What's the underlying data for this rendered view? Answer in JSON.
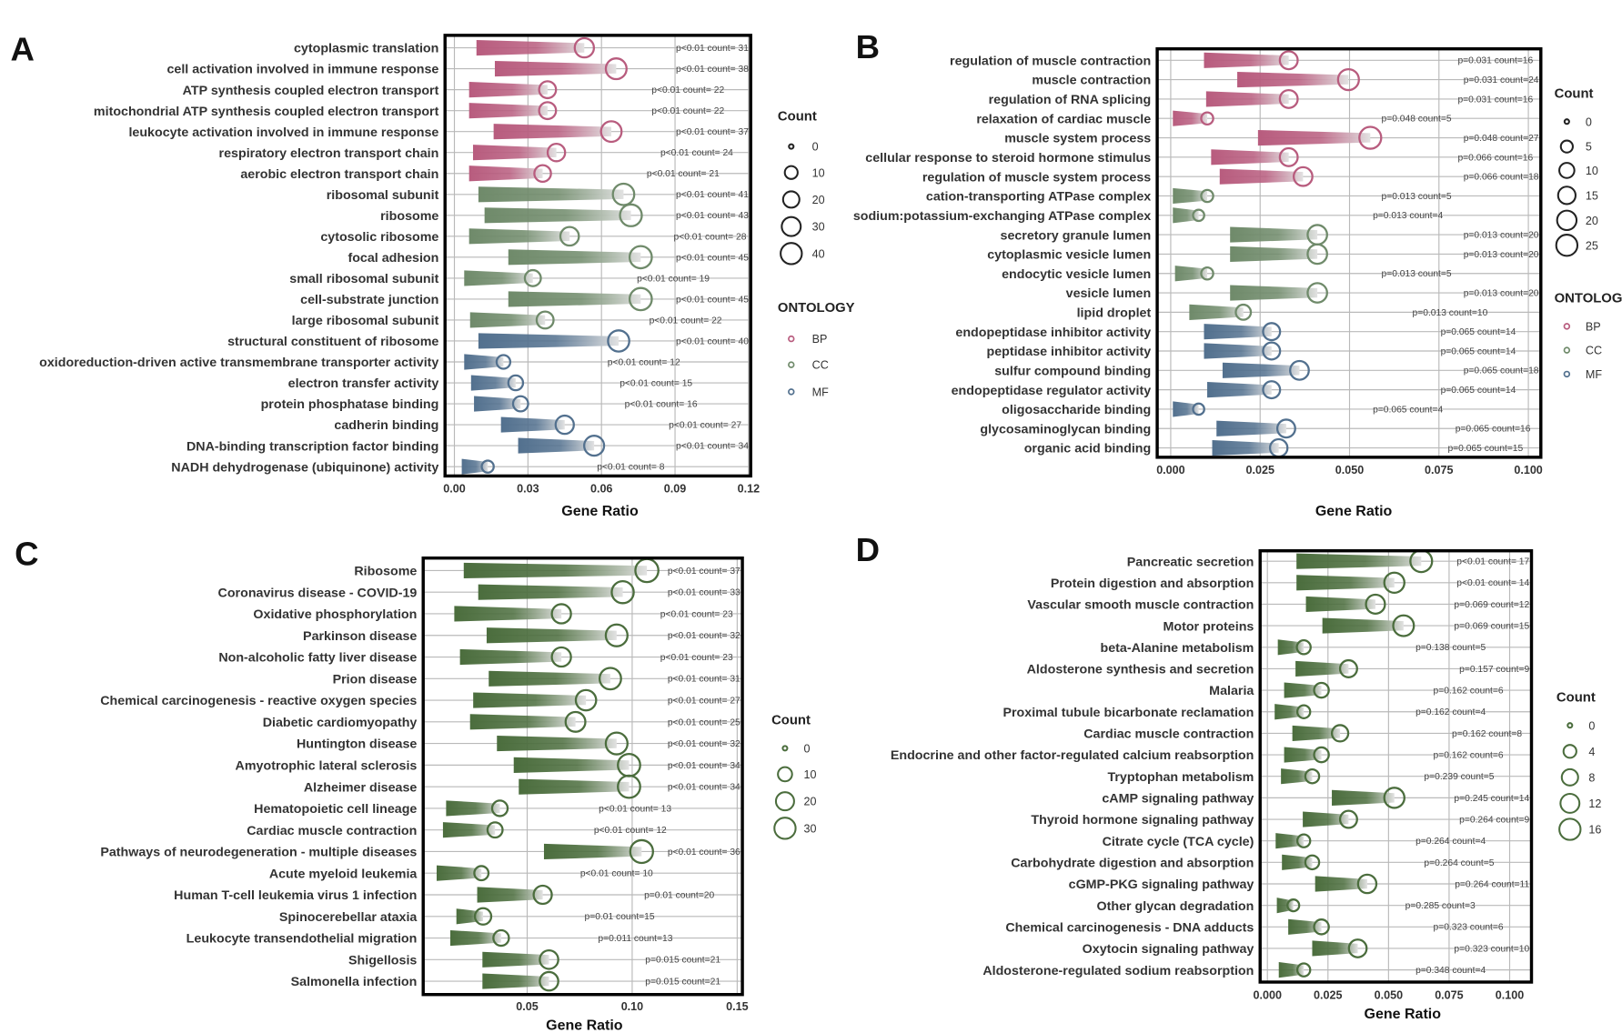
{
  "colors": {
    "BP": "#b85c7e",
    "CC": "#6f8a6a",
    "MF": "#52708e",
    "KEGG": "#4b6d3d",
    "fade": "#e2e2e2"
  },
  "chart_data": [
    {
      "panel": "A",
      "type": "bar",
      "xlabel": "Gene Ratio",
      "xlim": [
        0,
        0.12
      ],
      "ticks": [
        0,
        0.03,
        0.06,
        0.09,
        0.12
      ],
      "tick_labels": [
        "0.00",
        "0.03",
        "0.06",
        "0.09",
        "0.12"
      ],
      "legend_count_title": "Count",
      "legend_counts": [
        0,
        10,
        20,
        30,
        40
      ],
      "legend_group_title": "ONTOLOGY",
      "legend_groups": [
        "BP",
        "CC",
        "MF"
      ],
      "rows": [
        {
          "term": "cytoplasmic translation",
          "group": "BP",
          "start": 0.009,
          "ratio": 0.053,
          "count": 31,
          "label": "p<0.01 count= 31"
        },
        {
          "term": "cell activation involved in immune response",
          "group": "BP",
          "start": 0.0165,
          "ratio": 0.066,
          "count": 38,
          "label": "p<0.01 count= 38"
        },
        {
          "term": "ATP synthesis coupled electron transport",
          "group": "BP",
          "start": 0.006,
          "ratio": 0.038,
          "count": 22,
          "label": "p<0.01 count= 22"
        },
        {
          "term": "mitochondrial ATP synthesis coupled electron transport",
          "group": "BP",
          "start": 0.006,
          "ratio": 0.038,
          "count": 22,
          "label": "p<0.01 count= 22"
        },
        {
          "term": "leukocyte activation involved in immune response",
          "group": "BP",
          "start": 0.016,
          "ratio": 0.064,
          "count": 37,
          "label": "p<0.01 count= 37"
        },
        {
          "term": "respiratory electron transport chain",
          "group": "BP",
          "start": 0.0076,
          "ratio": 0.0416,
          "count": 24,
          "label": "p<0.01 count= 24"
        },
        {
          "term": "aerobic electron transport chain",
          "group": "BP",
          "start": 0.006,
          "ratio": 0.036,
          "count": 21,
          "label": "p<0.01 count= 21"
        },
        {
          "term": "ribosomal subunit",
          "group": "CC",
          "start": 0.0098,
          "ratio": 0.069,
          "count": 41,
          "label": "p<0.01 count= 41"
        },
        {
          "term": "ribosome",
          "group": "CC",
          "start": 0.0123,
          "ratio": 0.072,
          "count": 43,
          "label": "p<0.01 count= 43"
        },
        {
          "term": "cytosolic ribosome",
          "group": "CC",
          "start": 0.006,
          "ratio": 0.047,
          "count": 28,
          "label": "p<0.01 count= 28"
        },
        {
          "term": "focal adhesion",
          "group": "CC",
          "start": 0.022,
          "ratio": 0.076,
          "count": 45,
          "label": "p<0.01 count= 45"
        },
        {
          "term": "small ribosomal subunit",
          "group": "CC",
          "start": 0.004,
          "ratio": 0.032,
          "count": 19,
          "label": "p<0.01 count= 19"
        },
        {
          "term": "cell-substrate junction",
          "group": "CC",
          "start": 0.022,
          "ratio": 0.076,
          "count": 45,
          "label": "p<0.01 count= 45"
        },
        {
          "term": "large ribosomal subunit",
          "group": "CC",
          "start": 0.0064,
          "ratio": 0.037,
          "count": 22,
          "label": "p<0.01 count= 22"
        },
        {
          "term": "structural constituent of ribosome",
          "group": "MF",
          "start": 0.0098,
          "ratio": 0.067,
          "count": 40,
          "label": "p<0.01 count= 40"
        },
        {
          "term": "oxidoreduction-driven active transmembrane transporter activity",
          "group": "MF",
          "start": 0.004,
          "ratio": 0.02,
          "count": 12,
          "label": "p<0.01 count= 12"
        },
        {
          "term": "electron transfer activity",
          "group": "MF",
          "start": 0.0068,
          "ratio": 0.025,
          "count": 15,
          "label": "p<0.01 count= 15"
        },
        {
          "term": "protein phosphatase binding",
          "group": "MF",
          "start": 0.008,
          "ratio": 0.027,
          "count": 16,
          "label": "p<0.01 count= 16"
        },
        {
          "term": "cadherin binding",
          "group": "MF",
          "start": 0.019,
          "ratio": 0.045,
          "count": 27,
          "label": "p<0.01 count= 27"
        },
        {
          "term": "DNA-binding transcription factor binding",
          "group": "MF",
          "start": 0.026,
          "ratio": 0.057,
          "count": 34,
          "label": "p<0.01 count= 34"
        },
        {
          "term": "NADH dehydrogenase (ubiquinone) activity",
          "group": "MF",
          "start": 0.003,
          "ratio": 0.0136,
          "count": 8,
          "label": "p<0.01 count= 8"
        }
      ]
    },
    {
      "panel": "B",
      "type": "bar",
      "xlabel": "Gene Ratio",
      "xlim": [
        0,
        0.1
      ],
      "ticks": [
        0,
        0.025,
        0.05,
        0.075,
        0.1
      ],
      "tick_labels": [
        "0.000",
        "0.025",
        "0.050",
        "0.075",
        "0.100"
      ],
      "legend_count_title": "Count",
      "legend_counts": [
        0,
        5,
        10,
        15,
        20,
        25
      ],
      "legend_group_title": "ONTOLOG",
      "legend_groups": [
        "BP",
        "CC",
        "MF"
      ],
      "rows": [
        {
          "term": "regulation of muscle contraction",
          "group": "BP",
          "start": 0.0093,
          "ratio": 0.033,
          "count": 16,
          "label": "p=0.031 count=16"
        },
        {
          "term": "muscle contraction",
          "group": "BP",
          "start": 0.0186,
          "ratio": 0.0497,
          "count": 24,
          "label": "p=0.031 count=24"
        },
        {
          "term": "regulation of RNA splicing",
          "group": "BP",
          "start": 0.0099,
          "ratio": 0.033,
          "count": 16,
          "label": "p=0.031 count=16"
        },
        {
          "term": "relaxation of cardiac muscle",
          "group": "BP",
          "start": 0.0006,
          "ratio": 0.0102,
          "count": 5,
          "label": "p=0.048 count=5"
        },
        {
          "term": "muscle system process",
          "group": "BP",
          "start": 0.0244,
          "ratio": 0.0558,
          "count": 27,
          "label": "p=0.048 count=27"
        },
        {
          "term": "cellular response to steroid hormone stimulus",
          "group": "BP",
          "start": 0.0113,
          "ratio": 0.033,
          "count": 16,
          "label": "p=0.066 count=16"
        },
        {
          "term": "regulation of muscle system process",
          "group": "BP",
          "start": 0.0137,
          "ratio": 0.037,
          "count": 18,
          "label": "p=0.066 count=18"
        },
        {
          "term": "cation-transporting ATPase complex",
          "group": "CC",
          "start": 0.0006,
          "ratio": 0.0102,
          "count": 5,
          "label": "p=0.013 count=5"
        },
        {
          "term": "sodium:potassium-exchanging ATPase complex",
          "group": "CC",
          "start": 0.0006,
          "ratio": 0.0078,
          "count": 4,
          "label": "p=0.013 count=4"
        },
        {
          "term": "secretory granule lumen",
          "group": "CC",
          "start": 0.0166,
          "ratio": 0.041,
          "count": 20,
          "label": "p=0.013 count=20"
        },
        {
          "term": "cytoplasmic vesicle lumen",
          "group": "CC",
          "start": 0.0166,
          "ratio": 0.041,
          "count": 20,
          "label": "p=0.013 count=20"
        },
        {
          "term": "endocytic vesicle lumen",
          "group": "CC",
          "start": 0.0012,
          "ratio": 0.0102,
          "count": 5,
          "label": "p=0.013 count=5"
        },
        {
          "term": "vesicle lumen",
          "group": "CC",
          "start": 0.0166,
          "ratio": 0.041,
          "count": 20,
          "label": "p=0.013 count=20"
        },
        {
          "term": "lipid droplet",
          "group": "CC",
          "start": 0.0052,
          "ratio": 0.0203,
          "count": 10,
          "label": "p=0.013 count=10"
        },
        {
          "term": "endopeptidase inhibitor activity",
          "group": "MF",
          "start": 0.0093,
          "ratio": 0.0282,
          "count": 14,
          "label": "p=0.065 count=14"
        },
        {
          "term": "peptidase inhibitor activity",
          "group": "MF",
          "start": 0.0093,
          "ratio": 0.0282,
          "count": 14,
          "label": "p=0.065 count=14"
        },
        {
          "term": "sulfur compound binding",
          "group": "MF",
          "start": 0.0145,
          "ratio": 0.036,
          "count": 18,
          "label": "p=0.065 count=18"
        },
        {
          "term": "endopeptidase regulator activity",
          "group": "MF",
          "start": 0.0102,
          "ratio": 0.0282,
          "count": 14,
          "label": "p=0.065 count=14"
        },
        {
          "term": "oligosaccharide binding",
          "group": "MF",
          "start": 0.0006,
          "ratio": 0.0078,
          "count": 4,
          "label": "p=0.065 count=4"
        },
        {
          "term": "glycosaminoglycan binding",
          "group": "MF",
          "start": 0.0128,
          "ratio": 0.0323,
          "count": 16,
          "label": "p=0.065 count=16"
        },
        {
          "term": "organic acid binding",
          "group": "MF",
          "start": 0.0116,
          "ratio": 0.0302,
          "count": 15,
          "label": "p=0.065 count=15"
        }
      ]
    },
    {
      "panel": "C",
      "type": "bar",
      "xlabel": "Gene Ratio",
      "xlim": [
        0,
        0.15
      ],
      "ticks": [
        0.05,
        0.1,
        0.15
      ],
      "tick_labels": [
        "0.05",
        "0.10",
        "0.15"
      ],
      "legend_count_title": "Count",
      "legend_counts": [
        0,
        10,
        20,
        30
      ],
      "rows": [
        {
          "term": "Ribosome",
          "group": "KEGG",
          "start": 0.0198,
          "ratio": 0.107,
          "count": 37,
          "label": "p<0.01 count= 37"
        },
        {
          "term": "Coronavirus disease - COVID-19",
          "group": "KEGG",
          "start": 0.0267,
          "ratio": 0.0955,
          "count": 33,
          "label": "p<0.01 count= 33"
        },
        {
          "term": "Oxidative phosphorylation",
          "group": "KEGG",
          "start": 0.0153,
          "ratio": 0.0663,
          "count": 23,
          "label": "p<0.01 count= 23"
        },
        {
          "term": "Parkinson disease",
          "group": "KEGG",
          "start": 0.0307,
          "ratio": 0.0926,
          "count": 32,
          "label": "p<0.01 count= 32"
        },
        {
          "term": "Non-alcoholic fatty liver disease",
          "group": "KEGG",
          "start": 0.018,
          "ratio": 0.0663,
          "count": 23,
          "label": "p<0.01 count= 23"
        },
        {
          "term": "Prion disease",
          "group": "KEGG",
          "start": 0.0317,
          "ratio": 0.0896,
          "count": 31,
          "label": "p<0.01 count= 31"
        },
        {
          "term": "Chemical carcinogenesis - reactive oxygen species",
          "group": "KEGG",
          "start": 0.0243,
          "ratio": 0.078,
          "count": 27,
          "label": "p<0.01 count= 27"
        },
        {
          "term": "Diabetic cardiomyopathy",
          "group": "KEGG",
          "start": 0.0228,
          "ratio": 0.073,
          "count": 25,
          "label": "p<0.01 count= 25"
        },
        {
          "term": "Huntington disease",
          "group": "KEGG",
          "start": 0.0356,
          "ratio": 0.0926,
          "count": 32,
          "label": "p<0.01 count= 32"
        },
        {
          "term": "Amyotrophic lateral sclerosis",
          "group": "KEGG",
          "start": 0.0436,
          "ratio": 0.0985,
          "count": 34,
          "label": "p<0.01 count= 34"
        },
        {
          "term": "Alzheimer disease",
          "group": "KEGG",
          "start": 0.046,
          "ratio": 0.0985,
          "count": 34,
          "label": "p<0.01 count= 34"
        },
        {
          "term": "Hematopoietic cell lineage",
          "group": "KEGG",
          "start": 0.0114,
          "ratio": 0.037,
          "count": 13,
          "label": "p<0.01 count= 13"
        },
        {
          "term": "Cardiac muscle contraction",
          "group": "KEGG",
          "start": 0.0099,
          "ratio": 0.0347,
          "count": 12,
          "label": "p<0.01 count= 12"
        },
        {
          "term": "Pathways of neurodegeneration - multiple diseases",
          "group": "KEGG",
          "start": 0.058,
          "ratio": 0.1045,
          "count": 36,
          "label": "p<0.01 count= 36"
        },
        {
          "term": "Acute myeloid leukemia",
          "group": "KEGG",
          "start": 0.0069,
          "ratio": 0.0282,
          "count": 10,
          "label": "p<0.01 count= 10"
        },
        {
          "term": "Human T-cell leukemia virus 1 infection",
          "group": "KEGG",
          "start": 0.0262,
          "ratio": 0.0574,
          "count": 20,
          "label": "p=0.01 count=20"
        },
        {
          "term": "Spinocerebellar ataxia",
          "group": "KEGG",
          "start": 0.0163,
          "ratio": 0.029,
          "count": 15,
          "label": "p=0.01 count=15"
        },
        {
          "term": "Leukocyte transendothelial migration",
          "group": "KEGG",
          "start": 0.0134,
          "ratio": 0.0376,
          "count": 13,
          "label": "p=0.011 count=13"
        },
        {
          "term": "Shigellosis",
          "group": "KEGG",
          "start": 0.0287,
          "ratio": 0.0604,
          "count": 21,
          "label": "p=0.015 count=21"
        },
        {
          "term": "Salmonella infection",
          "group": "KEGG",
          "start": 0.0287,
          "ratio": 0.0604,
          "count": 21,
          "label": "p=0.015 count=21"
        }
      ]
    },
    {
      "panel": "D",
      "type": "bar",
      "xlabel": "Gene Ratio",
      "xlim": [
        0,
        0.1
      ],
      "ticks": [
        0,
        0.025,
        0.05,
        0.075,
        0.1
      ],
      "tick_labels": [
        "0.000",
        "0.025",
        "0.050",
        "0.075",
        "0.100"
      ],
      "legend_count_title": "Count",
      "legend_counts": [
        0,
        4,
        8,
        12,
        16
      ],
      "rows": [
        {
          "term": "Pancreatic secretion",
          "group": "KEGG",
          "start": 0.012,
          "ratio": 0.0635,
          "count": 17,
          "label": "p<0.01 count= 17"
        },
        {
          "term": "Protein digestion and absorption",
          "group": "KEGG",
          "start": 0.012,
          "ratio": 0.0524,
          "count": 14,
          "label": "p<0.01 count= 14"
        },
        {
          "term": "Vascular smooth muscle contraction",
          "group": "KEGG",
          "start": 0.0159,
          "ratio": 0.0446,
          "count": 12,
          "label": "p=0.069 count=12"
        },
        {
          "term": "Motor proteins",
          "group": "KEGG",
          "start": 0.0227,
          "ratio": 0.0562,
          "count": 15,
          "label": "p=0.069 count=15"
        },
        {
          "term": "beta-Alanine metabolism",
          "group": "KEGG",
          "start": 0.0043,
          "ratio": 0.015,
          "count": 5,
          "label": "p=0.138 count=5"
        },
        {
          "term": "Aldosterone synthesis and secretion",
          "group": "KEGG",
          "start": 0.0116,
          "ratio": 0.0335,
          "count": 9,
          "label": "p=0.157 count=9"
        },
        {
          "term": "Malaria",
          "group": "KEGG",
          "start": 0.0069,
          "ratio": 0.0223,
          "count": 6,
          "label": "p=0.162 count=6"
        },
        {
          "term": "Proximal tubule bicarbonate reclamation",
          "group": "KEGG",
          "start": 0.003,
          "ratio": 0.015,
          "count": 4,
          "label": "p=0.162 count=4"
        },
        {
          "term": "Cardiac muscle contraction",
          "group": "KEGG",
          "start": 0.0103,
          "ratio": 0.03,
          "count": 8,
          "label": "p=0.162 count=8"
        },
        {
          "term": "Endocrine and other factor-regulated calcium reabsorption",
          "group": "KEGG",
          "start": 0.0069,
          "ratio": 0.0223,
          "count": 6,
          "label": "p=0.162 count=6"
        },
        {
          "term": "Tryptophan metabolism",
          "group": "KEGG",
          "start": 0.0056,
          "ratio": 0.0185,
          "count": 5,
          "label": "p=0.239 count=5"
        },
        {
          "term": "cAMP signaling pathway",
          "group": "KEGG",
          "start": 0.0266,
          "ratio": 0.0524,
          "count": 14,
          "label": "p=0.245 count=14"
        },
        {
          "term": "Thyroid hormone signaling pathway",
          "group": "KEGG",
          "start": 0.0146,
          "ratio": 0.0335,
          "count": 9,
          "label": "p=0.264 count=9"
        },
        {
          "term": "Citrate cycle (TCA cycle)",
          "group": "KEGG",
          "start": 0.0034,
          "ratio": 0.015,
          "count": 4,
          "label": "p=0.264 count=4"
        },
        {
          "term": "Carbohydrate digestion and absorption",
          "group": "KEGG",
          "start": 0.006,
          "ratio": 0.0185,
          "count": 5,
          "label": "p=0.264 count=5"
        },
        {
          "term": "cGMP-PKG signaling pathway",
          "group": "KEGG",
          "start": 0.0197,
          "ratio": 0.0412,
          "count": 11,
          "label": "p=0.264 count=11"
        },
        {
          "term": "Other glycan degradation",
          "group": "KEGG",
          "start": 0.0039,
          "ratio": 0.0107,
          "count": 3,
          "label": "p=0.285 count=3"
        },
        {
          "term": "Chemical carcinogenesis - DNA adducts",
          "group": "KEGG",
          "start": 0.0086,
          "ratio": 0.0223,
          "count": 6,
          "label": "p=0.323 count=6"
        },
        {
          "term": "Oxytocin signaling pathway",
          "group": "KEGG",
          "start": 0.0185,
          "ratio": 0.0373,
          "count": 10,
          "label": "p=0.323 count=10"
        },
        {
          "term": "Aldosterone-regulated sodium reabsorption",
          "group": "KEGG",
          "start": 0.0047,
          "ratio": 0.015,
          "count": 4,
          "label": "p=0.348 count=4"
        }
      ]
    }
  ]
}
